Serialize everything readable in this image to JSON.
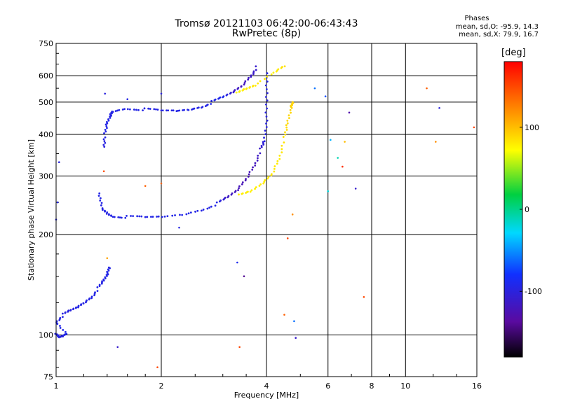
{
  "title": "Tromsø 20121103 06:42:00-06:43:43",
  "subtitle": "RwPretec (8p)",
  "stats": {
    "title": "Phases",
    "line_o": "mean, sd,O: -95.9, 14.3",
    "line_x": "mean, sd,X:  79.9, 16.7"
  },
  "colorbar": {
    "title": "[deg]",
    "range": [
      -180,
      180
    ],
    "ticks": [
      "100",
      "0",
      "-100"
    ],
    "tick_values": [
      100,
      0,
      -100
    ]
  },
  "chart_data": {
    "type": "scatter",
    "xlabel": "Frequency [MHz]",
    "ylabel": "Stationary phase Virtual Height [km]",
    "xscale": "log",
    "yscale": "log",
    "xlim": [
      1,
      16
    ],
    "ylim": [
      75,
      750
    ],
    "xticks": [
      1,
      2,
      4,
      6,
      8,
      10,
      16
    ],
    "xtick_labels": [
      "1",
      "2",
      "4",
      "6",
      "8",
      "10",
      "16"
    ],
    "yticks": [
      75,
      100,
      200,
      300,
      400,
      500,
      600,
      750
    ],
    "ytick_labels": [
      "75",
      "100",
      "200",
      "300",
      "400",
      "500",
      "600",
      "750"
    ],
    "grid": true,
    "colors": {
      "dark": "#2a1458",
      "purple": "#5a1b9c",
      "blue": "#1838e8",
      "green": "#28c83a",
      "yellow": "#d8f23a",
      "orange": "#f09020",
      "red": "#e82010"
    },
    "series": [
      {
        "points": [
          [
            1.0,
            100,
            -96
          ],
          [
            1.02,
            98,
            -96
          ],
          [
            1.04,
            99,
            -100
          ],
          [
            1.07,
            101,
            -92
          ],
          [
            1.0,
            110,
            -96
          ],
          [
            1.05,
            115,
            -98
          ],
          [
            1.1,
            118,
            -100
          ],
          [
            1.15,
            121,
            -95
          ],
          [
            1.2,
            125,
            -97
          ],
          [
            1.26,
            130,
            -96
          ],
          [
            1.32,
            138,
            -95
          ],
          [
            1.37,
            145,
            -97
          ],
          [
            1.4,
            152,
            -94
          ],
          [
            1.42,
            160,
            -96
          ],
          [
            1.37,
            370,
            -100
          ],
          [
            1.38,
            400,
            -96
          ],
          [
            1.4,
            430,
            -95
          ],
          [
            1.43,
            455,
            -97
          ],
          [
            1.45,
            470,
            -96
          ],
          [
            1.6,
            480,
            -95
          ],
          [
            1.8,
            475,
            -96
          ],
          [
            2.0,
            470,
            -97
          ],
          [
            2.2,
            470,
            -96
          ],
          [
            2.4,
            475,
            -95
          ],
          [
            2.6,
            485,
            -96
          ],
          [
            2.8,
            500,
            -94
          ],
          [
            3.0,
            515,
            -90
          ],
          [
            3.2,
            535,
            -110
          ],
          [
            3.4,
            560,
            -120
          ],
          [
            3.6,
            600,
            -115
          ],
          [
            3.75,
            635,
            -110
          ],
          [
            1.33,
            265,
            -95
          ],
          [
            1.35,
            240,
            -96
          ],
          [
            1.4,
            232,
            -97
          ],
          [
            1.45,
            228,
            -96
          ],
          [
            1.6,
            226,
            -95
          ],
          [
            1.8,
            225,
            -96
          ],
          [
            2.0,
            226,
            -95
          ],
          [
            2.3,
            230,
            -94
          ],
          [
            2.6,
            238,
            -96
          ],
          [
            2.9,
            248,
            -95
          ],
          [
            3.1,
            258,
            -115
          ],
          [
            3.3,
            272,
            -120
          ],
          [
            3.5,
            295,
            -125
          ],
          [
            3.7,
            325,
            -120
          ],
          [
            3.85,
            360,
            -112
          ],
          [
            3.95,
            380,
            -100
          ],
          [
            4.0,
            440,
            -98
          ],
          [
            4.0,
            520,
            -100
          ],
          [
            4.02,
            610,
            -96
          ]
        ]
      },
      {
        "points": [
          [
            3.3,
            530,
            75
          ],
          [
            3.5,
            545,
            80
          ],
          [
            3.7,
            560,
            82
          ],
          [
            4.2,
            615,
            78
          ],
          [
            4.5,
            645,
            85
          ],
          [
            3.35,
            262,
            80
          ],
          [
            3.6,
            268,
            78
          ],
          [
            3.9,
            285,
            80
          ],
          [
            4.15,
            305,
            82
          ],
          [
            4.35,
            340,
            80
          ],
          [
            4.5,
            390,
            85
          ],
          [
            4.6,
            430,
            88
          ],
          [
            4.7,
            480,
            90
          ],
          [
            4.75,
            500,
            92
          ]
        ]
      }
    ],
    "scatter_points": [
      [
        1.02,
        330,
        -100
      ],
      [
        1.01,
        250,
        -95
      ],
      [
        1.0,
        222,
        -95
      ],
      [
        1.38,
        530,
        -100
      ],
      [
        1.6,
        510,
        -96
      ],
      [
        2.0,
        530,
        -100
      ],
      [
        2.25,
        210,
        -96
      ],
      [
        3.3,
        165,
        -90
      ],
      [
        3.45,
        150,
        -140
      ],
      [
        4.85,
        98,
        -110
      ],
      [
        4.8,
        110,
        -60
      ],
      [
        4.5,
        115,
        140
      ],
      [
        4.6,
        195,
        150
      ],
      [
        4.75,
        230,
        120
      ],
      [
        5.5,
        550,
        -60
      ],
      [
        5.9,
        520,
        -70
      ],
      [
        6.1,
        385,
        -40
      ],
      [
        6.4,
        340,
        -10
      ],
      [
        6.7,
        380,
        100
      ],
      [
        6.6,
        320,
        160
      ],
      [
        6.9,
        465,
        -130
      ],
      [
        7.2,
        275,
        -110
      ],
      [
        7.6,
        130,
        150
      ],
      [
        6.0,
        270,
        -20
      ],
      [
        11.5,
        550,
        140
      ],
      [
        12.5,
        480,
        -100
      ],
      [
        12.2,
        380,
        120
      ],
      [
        15.7,
        420,
        150
      ],
      [
        1.5,
        92,
        -110
      ],
      [
        1.95,
        80,
        150
      ],
      [
        3.35,
        92,
        150
      ],
      [
        1.4,
        170,
        110
      ],
      [
        1.8,
        280,
        140
      ],
      [
        2.0,
        285,
        140
      ],
      [
        1.37,
        310,
        150
      ]
    ]
  }
}
